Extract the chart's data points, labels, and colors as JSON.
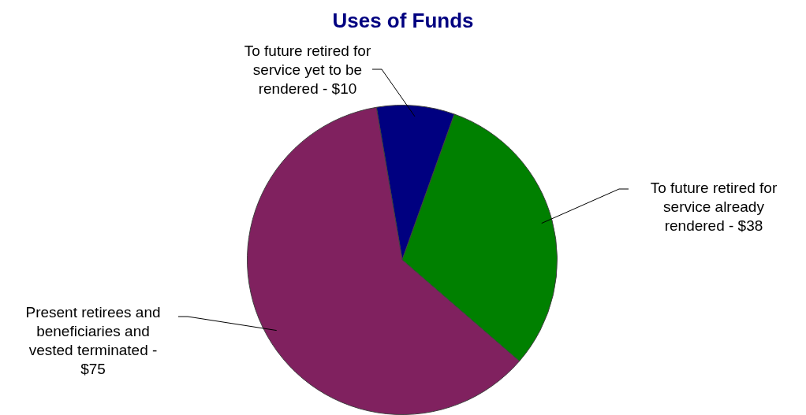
{
  "chart_data": {
    "type": "pie",
    "title": "Uses of Funds",
    "categories": [
      "To future retired for service yet to be rendered -",
      "To future retired for service already rendered -",
      "Present retirees and beneficiaries and vested terminated -"
    ],
    "values": [
      10,
      38,
      75
    ],
    "value_labels": [
      "$10",
      "$38",
      "$75"
    ],
    "colors": [
      "#000080",
      "#008000",
      "#80215f"
    ],
    "legend": false
  }
}
